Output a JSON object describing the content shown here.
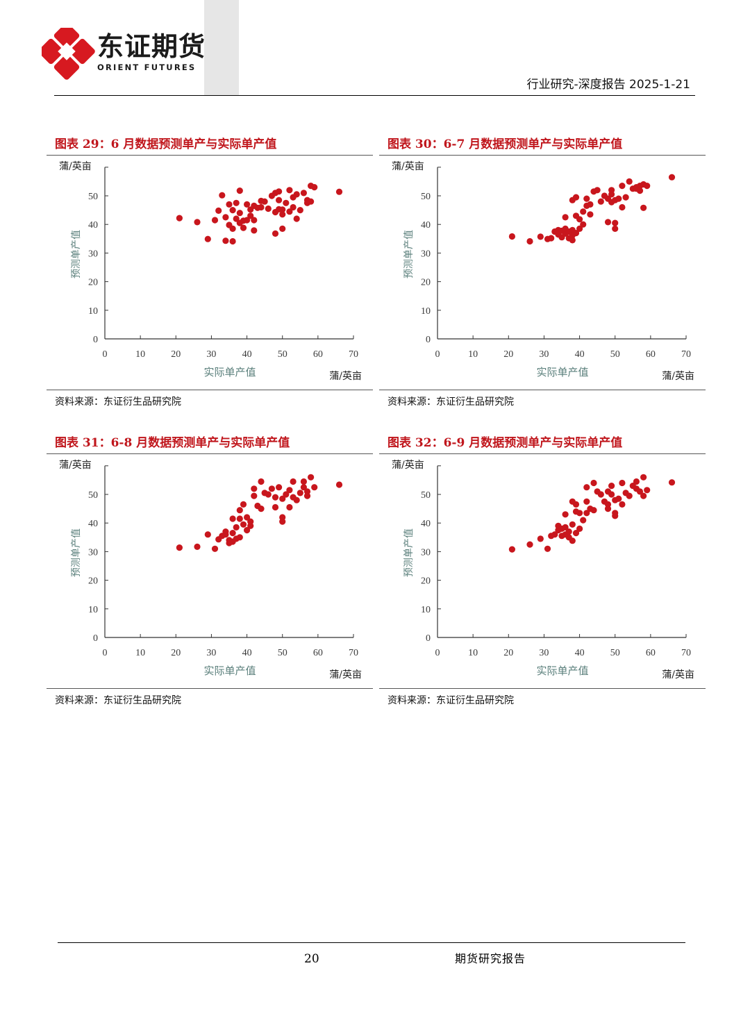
{
  "header": {
    "logo_name": "东证期货",
    "logo_sub": "ORIENT FUTURES",
    "report_type": "行业研究-深度报告",
    "date": "2025-1-21",
    "brand_color": "#d71920"
  },
  "footer": {
    "page_number": "20",
    "text": "期货研究报告"
  },
  "figures": [
    {
      "title": "图表 29：6 月数据预测单产与实际单产值",
      "source": "资料来源：东证衍生品研究院"
    },
    {
      "title": "图表 30：6-7 月数据预测单产与实际单产值",
      "source": "资料来源：东证衍生品研究院"
    },
    {
      "title": "图表 31：6-8 月数据预测单产与实际单产值",
      "source": "资料来源：东证衍生品研究院"
    },
    {
      "title": "图表 32：6-9 月数据预测单产与实际单产值",
      "source": "资料来源：东证衍生品研究院"
    }
  ],
  "chart_data": [
    {
      "type": "scatter",
      "xlabel": "实际单产值",
      "ylabel": "预测单产值",
      "x_unit": "蒲/英亩",
      "y_unit": "蒲/英亩",
      "xlim": [
        0,
        70
      ],
      "ylim": [
        0,
        60
      ],
      "xticks": [
        0,
        10,
        20,
        30,
        40,
        50,
        60,
        70
      ],
      "yticks": [
        0,
        10,
        20,
        30,
        40,
        50
      ],
      "grid": false,
      "marker_color": "#c8161d",
      "points": [
        [
          21,
          42.2
        ],
        [
          26,
          40.8
        ],
        [
          29,
          34.9
        ],
        [
          31,
          41.5
        ],
        [
          32,
          44.8
        ],
        [
          33,
          50.2
        ],
        [
          34,
          34.3
        ],
        [
          34,
          42.5
        ],
        [
          35,
          47.0
        ],
        [
          35,
          39.8
        ],
        [
          36,
          34.1
        ],
        [
          36,
          38.5
        ],
        [
          36,
          45.0
        ],
        [
          37,
          42.0
        ],
        [
          37,
          47.5
        ],
        [
          38,
          40.5
        ],
        [
          38,
          44.0
        ],
        [
          38,
          51.8
        ],
        [
          39,
          41.3
        ],
        [
          39,
          38.8
        ],
        [
          40,
          47.0
        ],
        [
          40,
          41.5
        ],
        [
          41,
          45.2
        ],
        [
          41,
          43.0
        ],
        [
          42,
          41.5
        ],
        [
          42,
          37.9
        ],
        [
          42,
          46.5
        ],
        [
          43,
          45.8
        ],
        [
          44,
          48.2
        ],
        [
          44,
          46.0
        ],
        [
          45,
          48.0
        ],
        [
          46,
          45.5
        ],
        [
          47,
          50.0
        ],
        [
          48,
          51.0
        ],
        [
          48,
          36.8
        ],
        [
          48,
          44.3
        ],
        [
          49,
          51.5
        ],
        [
          49,
          45.3
        ],
        [
          49,
          48.5
        ],
        [
          50,
          45.2
        ],
        [
          50,
          38.5
        ],
        [
          50,
          43.5
        ],
        [
          51,
          47.5
        ],
        [
          52,
          52.0
        ],
        [
          52,
          44.5
        ],
        [
          53,
          49.5
        ],
        [
          53,
          46.0
        ],
        [
          54,
          42.0
        ],
        [
          54,
          50.5
        ],
        [
          55,
          45.0
        ],
        [
          56,
          51.0
        ],
        [
          57,
          48.5
        ],
        [
          57,
          47.5
        ],
        [
          58,
          53.5
        ],
        [
          58,
          48.0
        ],
        [
          59,
          53.0
        ],
        [
          66,
          51.4
        ]
      ]
    },
    {
      "type": "scatter",
      "xlabel": "实际单产值",
      "ylabel": "预测单产值",
      "x_unit": "蒲/英亩",
      "y_unit": "蒲/英亩",
      "xlim": [
        0,
        70
      ],
      "ylim": [
        0,
        60
      ],
      "xticks": [
        0,
        10,
        20,
        30,
        40,
        50,
        60,
        70
      ],
      "yticks": [
        0,
        10,
        20,
        30,
        40,
        50
      ],
      "grid": false,
      "marker_color": "#c8161d",
      "points": [
        [
          21,
          35.8
        ],
        [
          26,
          34.1
        ],
        [
          29,
          35.7
        ],
        [
          31,
          34.9
        ],
        [
          32,
          35.2
        ],
        [
          33,
          37.5
        ],
        [
          34,
          38.0
        ],
        [
          34,
          36.5
        ],
        [
          35,
          37.8
        ],
        [
          35,
          35.5
        ],
        [
          36,
          36.8
        ],
        [
          36,
          38.5
        ],
        [
          36,
          42.5
        ],
        [
          37,
          35.2
        ],
        [
          37,
          37.5
        ],
        [
          38,
          38.0
        ],
        [
          38,
          36.2
        ],
        [
          38,
          34.5
        ],
        [
          38,
          48.5
        ],
        [
          39,
          37.0
        ],
        [
          39,
          49.5
        ],
        [
          39,
          43.0
        ],
        [
          40,
          38.5
        ],
        [
          40,
          41.8
        ],
        [
          41,
          40.0
        ],
        [
          41,
          44.5
        ],
        [
          42,
          46.5
        ],
        [
          42,
          49.0
        ],
        [
          43,
          47.0
        ],
        [
          43,
          43.5
        ],
        [
          44,
          51.5
        ],
        [
          45,
          52.0
        ],
        [
          46,
          48.0
        ],
        [
          47,
          50.0
        ],
        [
          48,
          49.0
        ],
        [
          48,
          40.8
        ],
        [
          49,
          47.8
        ],
        [
          49,
          52.0
        ],
        [
          49,
          50.5
        ],
        [
          50,
          48.5
        ],
        [
          50,
          38.5
        ],
        [
          50,
          40.5
        ],
        [
          51,
          49.0
        ],
        [
          52,
          46.0
        ],
        [
          52,
          53.5
        ],
        [
          53,
          49.5
        ],
        [
          54,
          55.0
        ],
        [
          55,
          52.5
        ],
        [
          56,
          52.5
        ],
        [
          56,
          53.0
        ],
        [
          57,
          53.5
        ],
        [
          57,
          51.8
        ],
        [
          58,
          54.0
        ],
        [
          58,
          45.8
        ],
        [
          59,
          53.5
        ],
        [
          66,
          56.5
        ]
      ]
    },
    {
      "type": "scatter",
      "xlabel": "实际单产值",
      "ylabel": "预测单产值",
      "x_unit": "蒲/英亩",
      "y_unit": "蒲/英亩",
      "xlim": [
        0,
        70
      ],
      "ylim": [
        0,
        60
      ],
      "xticks": [
        0,
        10,
        20,
        30,
        40,
        50,
        60,
        70
      ],
      "yticks": [
        0,
        10,
        20,
        30,
        40,
        50
      ],
      "grid": false,
      "marker_color": "#c8161d",
      "points": [
        [
          21,
          31.4
        ],
        [
          26,
          31.7
        ],
        [
          29,
          36.0
        ],
        [
          31,
          31.0
        ],
        [
          32,
          34.3
        ],
        [
          33,
          35.5
        ],
        [
          34,
          37.0
        ],
        [
          34,
          36.0
        ],
        [
          35,
          34.0
        ],
        [
          35,
          33.0
        ],
        [
          36,
          36.5
        ],
        [
          36,
          33.5
        ],
        [
          36,
          41.5
        ],
        [
          37,
          34.5
        ],
        [
          37,
          38.5
        ],
        [
          38,
          35.0
        ],
        [
          38,
          41.5
        ],
        [
          38,
          44.5
        ],
        [
          39,
          39.5
        ],
        [
          39,
          46.5
        ],
        [
          40,
          37.5
        ],
        [
          40,
          42.0
        ],
        [
          41,
          39.0
        ],
        [
          41,
          40.5
        ],
        [
          42,
          52.0
        ],
        [
          42,
          49.5
        ],
        [
          43,
          46.0
        ],
        [
          44,
          45.0
        ],
        [
          44,
          54.5
        ],
        [
          45,
          50.5
        ],
        [
          46,
          50.0
        ],
        [
          47,
          52.0
        ],
        [
          48,
          49.0
        ],
        [
          48,
          45.5
        ],
        [
          49,
          52.5
        ],
        [
          50,
          48.5
        ],
        [
          50,
          42.0
        ],
        [
          50,
          40.5
        ],
        [
          51,
          50.0
        ],
        [
          52,
          51.5
        ],
        [
          52,
          45.5
        ],
        [
          53,
          49.0
        ],
        [
          53,
          54.5
        ],
        [
          54,
          48.0
        ],
        [
          55,
          50.5
        ],
        [
          56,
          54.5
        ],
        [
          56,
          52.5
        ],
        [
          57,
          51.0
        ],
        [
          57,
          49.5
        ],
        [
          58,
          56.0
        ],
        [
          59,
          52.5
        ],
        [
          66,
          53.4
        ]
      ]
    },
    {
      "type": "scatter",
      "xlabel": "实际单产值",
      "ylabel": "预测单产值",
      "x_unit": "蒲/英亩",
      "y_unit": "蒲/英亩",
      "xlim": [
        0,
        70
      ],
      "ylim": [
        0,
        60
      ],
      "xticks": [
        0,
        10,
        20,
        30,
        40,
        50,
        60,
        70
      ],
      "yticks": [
        0,
        10,
        20,
        30,
        40,
        50
      ],
      "grid": false,
      "marker_color": "#c8161d",
      "points": [
        [
          21,
          30.8
        ],
        [
          26,
          32.5
        ],
        [
          29,
          34.5
        ],
        [
          31,
          31.0
        ],
        [
          32,
          35.5
        ],
        [
          33,
          36.0
        ],
        [
          34,
          37.5
        ],
        [
          34,
          39.0
        ],
        [
          35,
          38.0
        ],
        [
          35,
          35.5
        ],
        [
          36,
          38.5
        ],
        [
          36,
          36.0
        ],
        [
          36,
          43.0
        ],
        [
          37,
          35.0
        ],
        [
          37,
          37.0
        ],
        [
          38,
          33.8
        ],
        [
          38,
          39.5
        ],
        [
          38,
          47.5
        ],
        [
          39,
          36.5
        ],
        [
          39,
          44.0
        ],
        [
          39,
          46.5
        ],
        [
          40,
          38.0
        ],
        [
          40,
          43.5
        ],
        [
          41,
          41.0
        ],
        [
          42,
          43.5
        ],
        [
          42,
          52.5
        ],
        [
          42,
          47.5
        ],
        [
          43,
          45.0
        ],
        [
          44,
          54.0
        ],
        [
          44,
          44.5
        ],
        [
          45,
          51.0
        ],
        [
          46,
          50.0
        ],
        [
          47,
          47.5
        ],
        [
          48,
          51.0
        ],
        [
          48,
          45.0
        ],
        [
          48,
          46.5
        ],
        [
          49,
          53.0
        ],
        [
          49,
          50.0
        ],
        [
          50,
          48.0
        ],
        [
          50,
          42.5
        ],
        [
          50,
          43.5
        ],
        [
          51,
          48.5
        ],
        [
          52,
          54.0
        ],
        [
          52,
          46.5
        ],
        [
          53,
          50.5
        ],
        [
          54,
          49.5
        ],
        [
          55,
          53.0
        ],
        [
          56,
          54.5
        ],
        [
          56,
          52.0
        ],
        [
          57,
          51.0
        ],
        [
          58,
          56.0
        ],
        [
          58,
          49.5
        ],
        [
          59,
          51.5
        ],
        [
          66,
          54.2
        ]
      ]
    }
  ]
}
